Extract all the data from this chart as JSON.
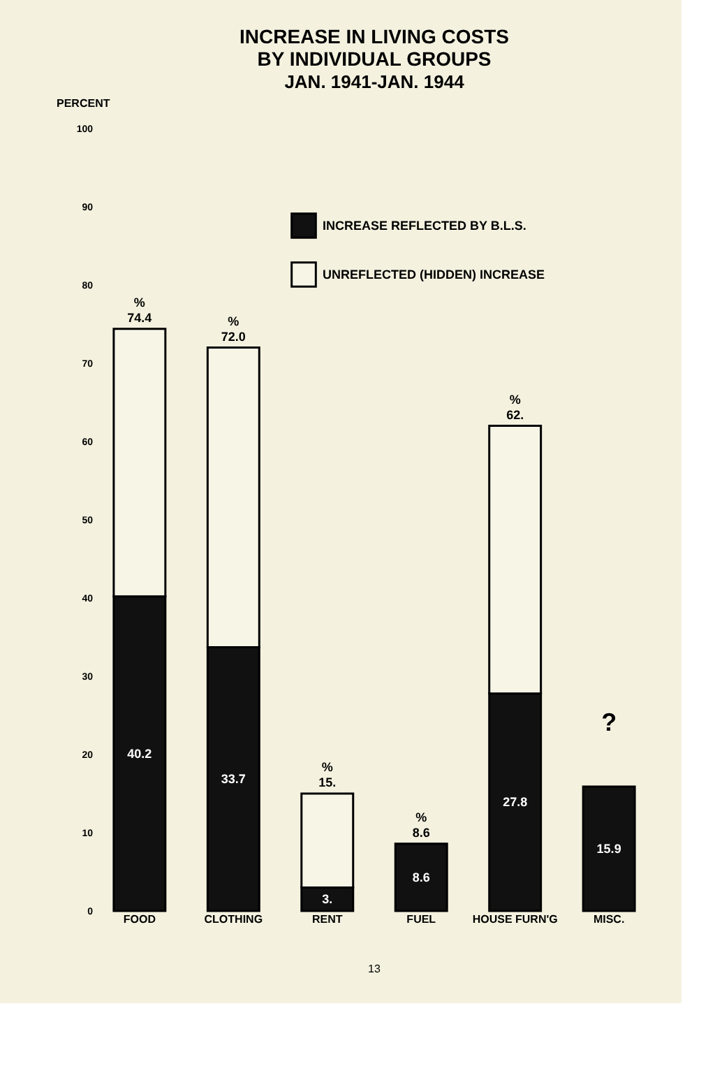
{
  "chart_data": {
    "type": "bar",
    "title": [
      "INCREASE IN LIVING COSTS",
      "BY INDIVIDUAL GROUPS"
    ],
    "subtitle": "JAN. 1941-JAN. 1944",
    "ylabel": "PERCENT",
    "categories": [
      "FOOD",
      "CLOTHING",
      "RENT",
      "FUEL",
      "HOUSE FURN'G",
      "MISC."
    ],
    "stacked": true,
    "series": [
      {
        "name": "INCREASE REFLECTED BY B.L.S.",
        "color": "#111111",
        "values": [
          40.2,
          33.7,
          3,
          8.6,
          27.8,
          15.9
        ],
        "value_labels": [
          "40.2",
          "33.7",
          "3.",
          "8.6",
          "27.8",
          "15.9"
        ]
      },
      {
        "name": "UNREFLECTED (HIDDEN) INCREASE",
        "color": "#f7f5e6",
        "values": [
          34.2,
          38.3,
          12,
          null,
          34.2,
          null
        ]
      }
    ],
    "totals": [
      "% 74.4",
      "% 72.0",
      "% 15.",
      "% 8.6",
      "% 62.",
      null
    ],
    "ylim": [
      0,
      100
    ],
    "yticks": [
      0,
      10,
      20,
      30,
      40,
      50,
      60,
      70,
      80,
      90,
      100
    ],
    "grid": false,
    "legend": "top",
    "annotations": [
      "?",
      "13"
    ]
  }
}
